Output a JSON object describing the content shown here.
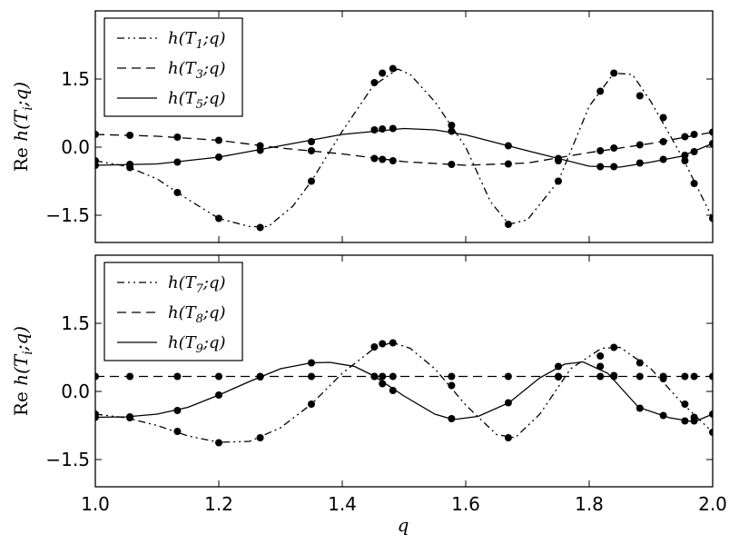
{
  "chart_data": [
    {
      "type": "line",
      "title": "",
      "xlabel": "",
      "ylabel": "Re h(T_i;q)",
      "ylabel_parts": [
        "Re ",
        "h(T",
        "i",
        ";q)"
      ],
      "xlim": [
        1.0,
        2.0
      ],
      "ylim": [
        -2.1,
        3.0
      ],
      "yticks": [
        -1.5,
        0.0,
        1.5
      ],
      "ytick_labels": [
        "−1.5",
        "0.0",
        "1.5"
      ],
      "grid": false,
      "legend_position": "top-left",
      "series": [
        {
          "name": "h(T1;q)",
          "name_base": "h(T",
          "name_sub": "1",
          "name_end": ";q)",
          "linestyle": "dashdotdot",
          "points": [
            [
              1.0,
              -0.3
            ],
            [
              1.056,
              -0.45
            ],
            [
              1.133,
              -1.0
            ],
            [
              1.2,
              -1.57
            ],
            [
              1.267,
              -1.77
            ],
            [
              1.35,
              -0.75
            ],
            [
              1.452,
              1.42
            ],
            [
              1.465,
              1.63
            ],
            [
              1.482,
              1.73
            ],
            [
              1.577,
              0.48
            ],
            [
              1.669,
              -1.7
            ],
            [
              1.75,
              -0.75
            ],
            [
              1.818,
              1.23
            ],
            [
              1.84,
              1.63
            ],
            [
              1.882,
              1.13
            ],
            [
              1.92,
              0.65
            ],
            [
              1.955,
              -0.3
            ],
            [
              1.97,
              -0.8
            ],
            [
              2.0,
              -1.57
            ]
          ],
          "curve": [
            [
              1.0,
              -0.3
            ],
            [
              1.05,
              -0.42
            ],
            [
              1.1,
              -0.7
            ],
            [
              1.15,
              -1.15
            ],
            [
              1.2,
              -1.57
            ],
            [
              1.25,
              -1.75
            ],
            [
              1.28,
              -1.75
            ],
            [
              1.32,
              -1.3
            ],
            [
              1.35,
              -0.75
            ],
            [
              1.4,
              0.35
            ],
            [
              1.45,
              1.35
            ],
            [
              1.49,
              1.72
            ],
            [
              1.51,
              1.6
            ],
            [
              1.55,
              1.0
            ],
            [
              1.6,
              0.0
            ],
            [
              1.64,
              -1.2
            ],
            [
              1.67,
              -1.7
            ],
            [
              1.7,
              -1.6
            ],
            [
              1.75,
              -0.75
            ],
            [
              1.8,
              0.9
            ],
            [
              1.84,
              1.63
            ],
            [
              1.87,
              1.6
            ],
            [
              1.9,
              1.0
            ],
            [
              1.95,
              -0.2
            ],
            [
              2.0,
              -1.57
            ]
          ]
        },
        {
          "name": "h(T3;q)",
          "name_base": "h(T",
          "name_sub": "3",
          "name_end": ";q)",
          "linestyle": "dashed",
          "points": [
            [
              1.0,
              0.28
            ],
            [
              1.056,
              0.26
            ],
            [
              1.133,
              0.22
            ],
            [
              1.2,
              0.15
            ],
            [
              1.267,
              0.03
            ],
            [
              1.35,
              -0.08
            ],
            [
              1.452,
              -0.25
            ],
            [
              1.465,
              -0.27
            ],
            [
              1.482,
              -0.3
            ],
            [
              1.577,
              -0.38
            ],
            [
              1.669,
              -0.37
            ],
            [
              1.75,
              -0.25
            ],
            [
              1.818,
              -0.08
            ],
            [
              1.84,
              -0.02
            ],
            [
              1.882,
              0.05
            ],
            [
              1.92,
              0.12
            ],
            [
              1.955,
              0.23
            ],
            [
              1.97,
              0.28
            ],
            [
              2.0,
              0.33
            ]
          ],
          "curve": [
            [
              1.0,
              0.28
            ],
            [
              1.1,
              0.24
            ],
            [
              1.2,
              0.15
            ],
            [
              1.3,
              -0.02
            ],
            [
              1.4,
              -0.15
            ],
            [
              1.5,
              -0.32
            ],
            [
              1.6,
              -0.4
            ],
            [
              1.7,
              -0.35
            ],
            [
              1.8,
              -0.12
            ],
            [
              1.9,
              0.08
            ],
            [
              2.0,
              0.33
            ]
          ]
        },
        {
          "name": "h(T5;q)",
          "name_base": "h(T",
          "name_sub": "5",
          "name_end": ";q)",
          "linestyle": "solid",
          "points": [
            [
              1.0,
              -0.4
            ],
            [
              1.056,
              -0.38
            ],
            [
              1.133,
              -0.33
            ],
            [
              1.2,
              -0.22
            ],
            [
              1.267,
              -0.07
            ],
            [
              1.35,
              0.12
            ],
            [
              1.452,
              0.38
            ],
            [
              1.465,
              0.4
            ],
            [
              1.482,
              0.41
            ],
            [
              1.577,
              0.35
            ],
            [
              1.669,
              0.03
            ],
            [
              1.75,
              -0.3
            ],
            [
              1.818,
              -0.43
            ],
            [
              1.84,
              -0.43
            ],
            [
              1.882,
              -0.35
            ],
            [
              1.92,
              -0.27
            ],
            [
              1.955,
              -0.18
            ],
            [
              1.97,
              -0.1
            ],
            [
              2.0,
              0.08
            ]
          ],
          "curve": [
            [
              1.0,
              -0.4
            ],
            [
              1.1,
              -0.37
            ],
            [
              1.2,
              -0.22
            ],
            [
              1.3,
              0.03
            ],
            [
              1.4,
              0.28
            ],
            [
              1.5,
              0.41
            ],
            [
              1.55,
              0.38
            ],
            [
              1.6,
              0.27
            ],
            [
              1.7,
              -0.08
            ],
            [
              1.8,
              -0.42
            ],
            [
              1.85,
              -0.44
            ],
            [
              1.9,
              -0.33
            ],
            [
              1.95,
              -0.2
            ],
            [
              2.0,
              0.08
            ]
          ]
        }
      ]
    },
    {
      "type": "line",
      "title": "",
      "xlabel": "q",
      "ylabel": "Re h(T_i;q)",
      "ylabel_parts": [
        "Re ",
        "h(T",
        "i",
        ";q)"
      ],
      "xlim": [
        1.0,
        2.0
      ],
      "ylim": [
        -2.1,
        3.0
      ],
      "yticks": [
        -1.5,
        0.0,
        1.5
      ],
      "ytick_labels": [
        "−1.5",
        "0.0",
        "1.5"
      ],
      "xticks": [
        1.0,
        1.2,
        1.4,
        1.6,
        1.8,
        2.0
      ],
      "xtick_labels": [
        "1.0",
        "1.2",
        "1.4",
        "1.6",
        "1.8",
        "2.0"
      ],
      "grid": false,
      "legend_position": "top-left",
      "series": [
        {
          "name": "h(T7;q)",
          "name_base": "h(T",
          "name_sub": "7",
          "name_end": ";q)",
          "linestyle": "dashdotdot",
          "points": [
            [
              1.0,
              -0.5
            ],
            [
              1.056,
              -0.58
            ],
            [
              1.133,
              -0.88
            ],
            [
              1.2,
              -1.13
            ],
            [
              1.267,
              -1.02
            ],
            [
              1.35,
              -0.28
            ],
            [
              1.452,
              0.98
            ],
            [
              1.465,
              1.05
            ],
            [
              1.482,
              1.07
            ],
            [
              1.577,
              0.13
            ],
            [
              1.669,
              -1.02
            ],
            [
              1.75,
              0.32
            ],
            [
              1.818,
              0.78
            ],
            [
              1.84,
              0.97
            ],
            [
              1.882,
              0.63
            ],
            [
              1.92,
              0.28
            ],
            [
              1.955,
              -0.28
            ],
            [
              1.97,
              -0.57
            ],
            [
              2.0,
              -0.9
            ]
          ],
          "curve": [
            [
              1.0,
              -0.5
            ],
            [
              1.05,
              -0.58
            ],
            [
              1.1,
              -0.75
            ],
            [
              1.15,
              -0.98
            ],
            [
              1.2,
              -1.12
            ],
            [
              1.25,
              -1.1
            ],
            [
              1.3,
              -0.8
            ],
            [
              1.35,
              -0.28
            ],
            [
              1.4,
              0.4
            ],
            [
              1.45,
              0.93
            ],
            [
              1.48,
              1.08
            ],
            [
              1.51,
              0.95
            ],
            [
              1.55,
              0.5
            ],
            [
              1.6,
              -0.3
            ],
            [
              1.65,
              -0.95
            ],
            [
              1.68,
              -1.02
            ],
            [
              1.72,
              -0.5
            ],
            [
              1.77,
              0.5
            ],
            [
              1.82,
              0.95
            ],
            [
              1.85,
              0.97
            ],
            [
              1.9,
              0.5
            ],
            [
              1.95,
              -0.25
            ],
            [
              2.0,
              -0.9
            ]
          ]
        },
        {
          "name": "h(T8;q)",
          "name_base": "h(T",
          "name_sub": "8",
          "name_end": ";q)",
          "linestyle": "dashed",
          "points": [
            [
              1.0,
              0.33
            ],
            [
              1.056,
              0.33
            ],
            [
              1.133,
              0.33
            ],
            [
              1.2,
              0.33
            ],
            [
              1.267,
              0.33
            ],
            [
              1.35,
              0.33
            ],
            [
              1.452,
              0.33
            ],
            [
              1.465,
              0.33
            ],
            [
              1.482,
              0.33
            ],
            [
              1.577,
              0.33
            ],
            [
              1.669,
              0.33
            ],
            [
              1.75,
              0.33
            ],
            [
              1.818,
              0.33
            ],
            [
              1.84,
              0.33
            ],
            [
              1.882,
              0.33
            ],
            [
              1.92,
              0.33
            ],
            [
              1.955,
              0.33
            ],
            [
              1.97,
              0.33
            ],
            [
              2.0,
              0.33
            ]
          ],
          "curve": [
            [
              1.0,
              0.33
            ],
            [
              2.0,
              0.33
            ]
          ]
        },
        {
          "name": "h(T9;q)",
          "name_base": "h(T",
          "name_sub": "9",
          "name_end": ";q)",
          "linestyle": "solid",
          "points": [
            [
              1.0,
              -0.57
            ],
            [
              1.056,
              -0.56
            ],
            [
              1.133,
              -0.42
            ],
            [
              1.2,
              -0.08
            ],
            [
              1.267,
              0.32
            ],
            [
              1.35,
              0.63
            ],
            [
              1.452,
              0.33
            ],
            [
              1.465,
              0.17
            ],
            [
              1.482,
              0.02
            ],
            [
              1.577,
              -0.6
            ],
            [
              1.669,
              -0.25
            ],
            [
              1.75,
              0.55
            ],
            [
              1.818,
              0.55
            ],
            [
              1.84,
              0.35
            ],
            [
              1.882,
              -0.37
            ],
            [
              1.92,
              -0.53
            ],
            [
              1.955,
              -0.65
            ],
            [
              1.97,
              -0.65
            ],
            [
              2.0,
              -0.5
            ]
          ],
          "curve": [
            [
              1.0,
              -0.57
            ],
            [
              1.05,
              -0.56
            ],
            [
              1.1,
              -0.5
            ],
            [
              1.15,
              -0.35
            ],
            [
              1.2,
              -0.08
            ],
            [
              1.25,
              0.22
            ],
            [
              1.3,
              0.5
            ],
            [
              1.35,
              0.63
            ],
            [
              1.38,
              0.64
            ],
            [
              1.42,
              0.55
            ],
            [
              1.45,
              0.35
            ],
            [
              1.5,
              -0.1
            ],
            [
              1.55,
              -0.5
            ],
            [
              1.58,
              -0.62
            ],
            [
              1.62,
              -0.55
            ],
            [
              1.67,
              -0.25
            ],
            [
              1.72,
              0.3
            ],
            [
              1.76,
              0.6
            ],
            [
              1.79,
              0.65
            ],
            [
              1.83,
              0.4
            ],
            [
              1.88,
              -0.35
            ],
            [
              1.93,
              -0.58
            ],
            [
              1.97,
              -0.67
            ],
            [
              2.0,
              -0.5
            ]
          ]
        }
      ]
    }
  ]
}
